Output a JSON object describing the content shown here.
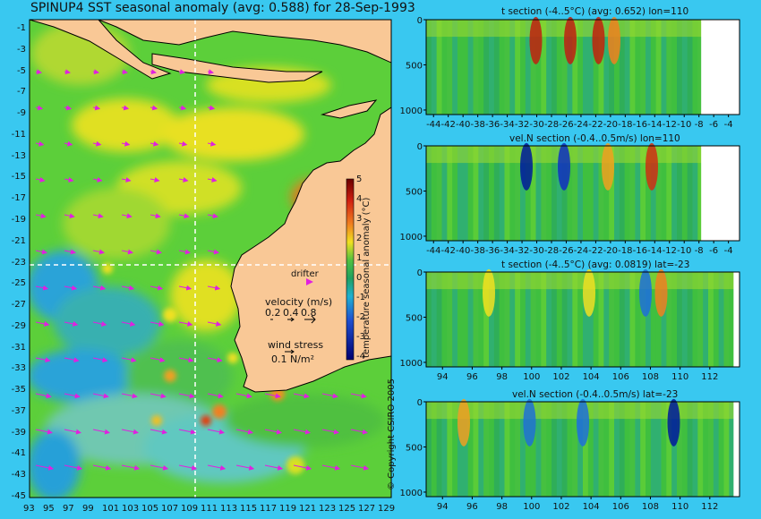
{
  "header": {
    "main_title": "SPINUP4 SST seasonal anomaly (avg: 0.588) for 28-Sep-1993"
  },
  "map": {
    "lat_ticks": [
      "-1",
      "-3",
      "-5",
      "-7",
      "-9",
      "-11",
      "-13",
      "-15",
      "-17",
      "-19",
      "-21",
      "-23",
      "-25",
      "-27",
      "-29",
      "-31",
      "-33",
      "-35",
      "-37",
      "-39",
      "-41",
      "-43",
      "-45"
    ],
    "lon_ticks": [
      "93",
      "95",
      "97",
      "99",
      "101",
      "103",
      "105",
      "107",
      "109",
      "111",
      "113",
      "115",
      "117",
      "119",
      "121",
      "123",
      "125",
      "127",
      "129"
    ],
    "drifter_label": "drifter",
    "velocity_label": "velocity (m/s)",
    "velocity_scale": [
      "0.2",
      "0.4",
      "0.8"
    ],
    "wind_label": "wind stress",
    "wind_scale": "0.1 N/m²",
    "colorbar_label": "temperature seasonal anomaly (°C)",
    "colorbar_ticks": [
      "5",
      "4",
      "3",
      "2",
      "1",
      "0",
      "-1",
      "-2",
      "-3",
      "-4"
    ],
    "colors": {
      "land": "#f9c896",
      "ocean_mid": "#3fbf3f",
      "warm": "#f0e020",
      "cool": "#2aa3d8"
    }
  },
  "copyright": "© Copyright CSIRO 2005",
  "chart_data": [
    {
      "type": "heatmap",
      "title": "t section (-4..5°C) (avg: 0.652) lon=110",
      "x_ticks": [
        "-44",
        "-42",
        "-40",
        "-38",
        "-36",
        "-34",
        "-32",
        "-30",
        "-28",
        "-26",
        "-24",
        "-22",
        "-20",
        "-18",
        "-16",
        "-14",
        "-12",
        "-10",
        "-8",
        "-6",
        "-4"
      ],
      "y_ticks": [
        "0",
        "500",
        "1000"
      ],
      "xlim": [
        -45,
        -2.5
      ],
      "ylim": [
        1050,
        0
      ]
    },
    {
      "type": "heatmap",
      "title": "vel.N section (-0.4..0.5m/s) lon=110",
      "x_ticks": [
        "-44",
        "-42",
        "-40",
        "-38",
        "-36",
        "-34",
        "-32",
        "-30",
        "-28",
        "-26",
        "-24",
        "-22",
        "-20",
        "-18",
        "-16",
        "-14",
        "-12",
        "-10",
        "-8",
        "-6",
        "-4"
      ],
      "y_ticks": [
        "0",
        "500",
        "1000"
      ],
      "xlim": [
        -45,
        -2.5
      ],
      "ylim": [
        1050,
        0
      ]
    },
    {
      "type": "heatmap",
      "title": "t section (-4..5°C) (avg: 0.0819) lat=-23",
      "x_ticks": [
        "94",
        "96",
        "98",
        "100",
        "102",
        "104",
        "106",
        "108",
        "110",
        "112"
      ],
      "y_ticks": [
        "0",
        "500",
        "1000"
      ],
      "xlim": [
        92.9,
        114
      ],
      "ylim": [
        1050,
        0
      ]
    },
    {
      "type": "heatmap",
      "title": "vel.N section (-0.4..0.5m/s) lat=-23",
      "x_ticks": [
        "94",
        "96",
        "98",
        "100",
        "102",
        "104",
        "106",
        "108",
        "110",
        "112"
      ],
      "y_ticks": [
        "0",
        "500",
        "1000"
      ],
      "xlim": [
        92.9,
        114
      ],
      "ylim": [
        1050,
        0
      ]
    }
  ]
}
